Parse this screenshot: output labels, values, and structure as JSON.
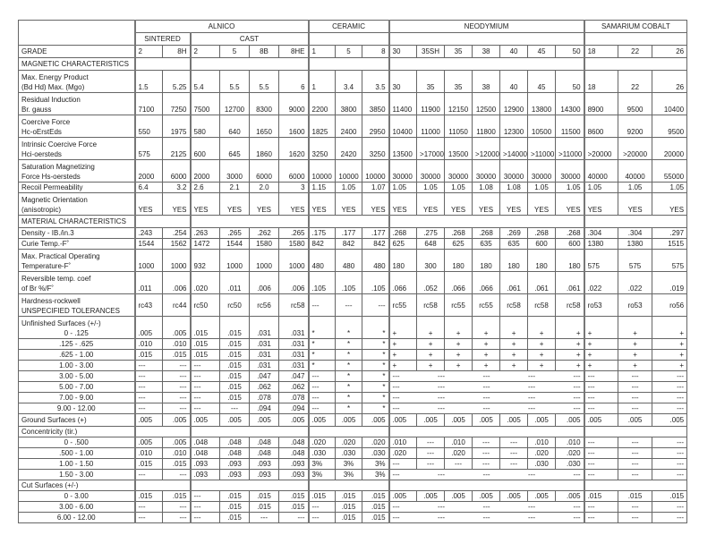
{
  "header": {
    "groups": [
      "ALNICO",
      "CERAMIC",
      "NEODYMIUM",
      "SAMARIUM COBALT"
    ],
    "subgroups": [
      "SINTERED",
      "CAST"
    ],
    "grade_label": "GRADE",
    "grades": [
      "2",
      "8H",
      "2",
      "5",
      "8B",
      "8HE",
      "1",
      "5",
      "8",
      "30",
      "35SH",
      "35",
      "38",
      "40",
      "45",
      "50",
      "18",
      "22",
      "26"
    ]
  },
  "rows": [
    {
      "type": "sec",
      "label": [
        "MAGNETIC CHARACTERISTICS"
      ]
    },
    {
      "type": "d",
      "label": [
        "Max. Energy Product",
        "(Bd Hd) Max. (Mgo)"
      ],
      "v": [
        "1.5",
        "5.25",
        "5.4",
        "5.5",
        "5.5",
        "6",
        "1",
        "3.4",
        "3.5",
        "30",
        "35",
        "35",
        "38",
        "40",
        "45",
        "50",
        "18",
        "22",
        "26"
      ]
    },
    {
      "type": "d",
      "label": [
        "Residual Induction",
        "Br. gauss"
      ],
      "v": [
        "7100",
        "7250",
        "7500",
        "12700",
        "8300",
        "9000",
        "2200",
        "3800",
        "3850",
        "11400",
        "11900",
        "12150",
        "12500",
        "12900",
        "13800",
        "14300",
        "8900",
        "9500",
        "10400"
      ]
    },
    {
      "type": "d",
      "label": [
        "Coercive Force",
        "Hc-oErstEds"
      ],
      "v": [
        "550",
        "1975",
        "580",
        "640",
        "1650",
        "1600",
        "1825",
        "2400",
        "2950",
        "10400",
        "11000",
        "11050",
        "11800",
        "12300",
        "10500",
        "11500",
        "8600",
        "9200",
        "9500"
      ]
    },
    {
      "type": "d",
      "label": [
        "Intrinsic Coercive Force",
        "Hci-oersteds"
      ],
      "v": [
        "575",
        "2125",
        "600",
        "645",
        "1860",
        "1620",
        "3250",
        "2420",
        "3250",
        "13500",
        ">17000",
        "13500",
        ">12000",
        ">14000",
        ">11000",
        ">11000",
        ">20000",
        ">20000",
        "20000"
      ]
    },
    {
      "type": "d",
      "label": [
        "Saturation Magnetizing",
        "Force Hs-oersteds"
      ],
      "v": [
        "2000",
        "6000",
        "2000",
        "3000",
        "6000",
        "6000",
        "10000",
        "10000",
        "10000",
        "30000",
        "30000",
        "30000",
        "30000",
        "30000",
        "30000",
        "30000",
        "40000",
        "40000",
        "55000"
      ]
    },
    {
      "type": "s",
      "label": [
        "Recoil Permeability"
      ],
      "v": [
        "6.4",
        "3.2",
        "2.6",
        "2.1",
        "2.0",
        "3",
        "1.15",
        "1.05",
        "1.07",
        "1.05",
        "1.05",
        "1.05",
        "1.08",
        "1.08",
        "1.05",
        "1.05",
        "1.05",
        "1.05",
        "1.05"
      ]
    },
    {
      "type": "d",
      "label": [
        "Magnetic Orientation",
        "(anisotropic)"
      ],
      "v": [
        "YES",
        "YES",
        "YES",
        "YES",
        "YES",
        "YES",
        "YES",
        "YES",
        "YES",
        "YES",
        "YES",
        "YES",
        "YES",
        "YES",
        "YES",
        "YES",
        "YES",
        "YES",
        "YES"
      ]
    },
    {
      "type": "sec",
      "label": [
        "MATERIAL CHARACTERISTICS"
      ]
    },
    {
      "type": "s",
      "label": [
        "Density - IB./in.3"
      ],
      "v": [
        ".243",
        ".254",
        ".263",
        ".265",
        ".262",
        ".265",
        ".175",
        ".177",
        ".177",
        ".268",
        ".275",
        ".268",
        ".268",
        ".269",
        ".268",
        ".268",
        ".304",
        ".304",
        ".297"
      ]
    },
    {
      "type": "s",
      "label": [
        "Curie Temp.-F˚"
      ],
      "v": [
        "1544",
        "1562",
        "1472",
        "1544",
        "1580",
        "1580",
        "842",
        "842",
        "842",
        "625",
        "648",
        "625",
        "635",
        "635",
        "600",
        "600",
        "1380",
        "1380",
        "1515"
      ]
    },
    {
      "type": "d",
      "label": [
        "Max. Practical Operating",
        "Temperature-F˚"
      ],
      "v": [
        "1000",
        "1000",
        "932",
        "1000",
        "1000",
        "1000",
        "480",
        "480",
        "480",
        "180",
        "300",
        "180",
        "180",
        "180",
        "180",
        "180",
        "575",
        "575",
        "575"
      ]
    },
    {
      "type": "d",
      "label": [
        "Reversible temp. coef",
        "of Br %/F˚"
      ],
      "v": [
        ".011",
        ".006",
        ".020",
        ".011",
        ".006",
        ".006",
        ".105",
        ".105",
        ".105",
        ".066",
        ".052",
        ".066",
        ".066",
        ".061",
        ".061",
        ".061",
        ".022",
        ".022",
        ".019"
      ]
    },
    {
      "type": "d",
      "mid": true,
      "label": [
        "Hardness-rockwell",
        "UNSPECIFIED TOLERANCES"
      ],
      "v": [
        "rc43",
        "rc44",
        "rc50",
        "rc50",
        "rc56",
        "rc58",
        "---",
        "---",
        "---",
        "rc55",
        "rc58",
        "rc55",
        "rc55",
        "rc58",
        "rc58",
        "rc58",
        "ro53",
        "ro53",
        "ro56"
      ]
    },
    {
      "type": "d",
      "sublabel": true,
      "label": [
        "Unfinished Surfaces (+/-)",
        "0 - .125"
      ],
      "v": [
        ".005",
        ".005",
        ".015",
        ".015",
        ".031",
        ".031",
        "*",
        "*",
        "*",
        "+",
        "+",
        "+",
        "+",
        "+",
        "+",
        "+",
        "+",
        "+",
        "+"
      ]
    },
    {
      "type": "s",
      "sub": true,
      "label": [
        ".125 - .625"
      ],
      "v": [
        ".010",
        ".010",
        ".015",
        ".015",
        ".031",
        ".031",
        "*",
        "*",
        "*",
        "+",
        "+",
        "+",
        "+",
        "+",
        "+",
        "+",
        "+",
        "+",
        "+"
      ]
    },
    {
      "type": "s",
      "sub": true,
      "label": [
        ".625 - 1.00"
      ],
      "v": [
        ".015",
        ".015",
        ".015",
        ".015",
        ".031",
        ".031",
        "*",
        "*",
        "*",
        "+",
        "+",
        "+",
        "+",
        "+",
        "+",
        "+",
        "+",
        "+",
        "+"
      ]
    },
    {
      "type": "s",
      "sub": true,
      "label": [
        "1.00 - 3.00"
      ],
      "v": [
        "---",
        "---",
        "---",
        ".015",
        ".031",
        ".031",
        "*",
        "*",
        "*",
        "+",
        "+",
        "+",
        "+",
        "+",
        "+",
        "+",
        "+",
        "+",
        "+"
      ]
    },
    {
      "type": "s",
      "sub": true,
      "label": [
        "3.00 - 5.00"
      ],
      "v": [
        "---",
        "---",
        "---",
        ".015",
        ".047",
        ".047",
        "---",
        "*",
        "*"
      ],
      "neo": [
        "---",
        "---",
        "---",
        "---",
        "---"
      ],
      "sm": [
        "---",
        "---",
        "---"
      ]
    },
    {
      "type": "s",
      "sub": true,
      "label": [
        "5.00 - 7.00"
      ],
      "v": [
        "---",
        "---",
        "---",
        ".015",
        ".062",
        ".062",
        "---",
        "*",
        "*"
      ],
      "neo": [
        "---",
        "---",
        "---",
        "---",
        "---"
      ],
      "sm": [
        "---",
        "---",
        "---"
      ]
    },
    {
      "type": "s",
      "sub": true,
      "label": [
        "7.00 - 9.00"
      ],
      "v": [
        "---",
        "---",
        "---",
        ".015",
        ".078",
        ".078",
        "---",
        "*",
        "*"
      ],
      "neo": [
        "---",
        "---",
        "---",
        "---",
        "---"
      ],
      "sm": [
        "---",
        "---",
        "---"
      ]
    },
    {
      "type": "s",
      "sub": true,
      "label": [
        "9.00 - 12.00"
      ],
      "v": [
        "---",
        "---",
        "---",
        "---",
        ".094",
        ".094",
        "---",
        "*",
        "*"
      ],
      "neo": [
        "---",
        "---",
        "---",
        "---",
        "---"
      ],
      "sm": [
        "---",
        "---",
        "---"
      ]
    },
    {
      "type": "sec",
      "label": [
        "Ground Surfaces (+)"
      ],
      "v": [
        ".005",
        ".005",
        ".005",
        ".005",
        ".005",
        ".005",
        ".005",
        ".005",
        ".005",
        ".005",
        ".005",
        ".005",
        ".005",
        ".005",
        ".005",
        ".005",
        ".005",
        ".005",
        ".005"
      ]
    },
    {
      "type": "s",
      "label": [
        "Concentricity (tir.)"
      ],
      "empty": true
    },
    {
      "type": "s",
      "sub": true,
      "label": [
        "0 - .500"
      ],
      "v": [
        ".005",
        ".005",
        ".048",
        ".048",
        ".048",
        ".048",
        ".020",
        ".020",
        ".020",
        ".010",
        "---",
        ".010",
        "---",
        "---",
        ".010",
        ".010",
        "---",
        "---",
        "---"
      ]
    },
    {
      "type": "s",
      "sub": true,
      "label": [
        ".500 - 1.00"
      ],
      "v": [
        ".010",
        ".010",
        ".048",
        ".048",
        ".048",
        ".048",
        ".030",
        ".030",
        ".030",
        ".020",
        "---",
        ".020",
        "---",
        "---",
        ".020",
        ".020",
        "---",
        "---",
        "---"
      ]
    },
    {
      "type": "s",
      "sub": true,
      "label": [
        "1.00 - 1.50"
      ],
      "v": [
        ".015",
        ".015",
        ".093",
        ".093",
        ".093",
        ".093",
        "3%",
        "3%",
        "3%",
        "---",
        "---",
        "---",
        "---",
        "---",
        ".030",
        ".030",
        "---",
        "---",
        "---"
      ]
    },
    {
      "type": "s",
      "sub": true,
      "label": [
        "1.50 - 3.00"
      ],
      "v": [
        "---",
        "---",
        ".093",
        ".093",
        ".093",
        ".093",
        "3%",
        "3%",
        "3%"
      ],
      "neo": [
        "---",
        "---",
        "---",
        "---",
        "---"
      ],
      "sm": [
        "---",
        "---",
        "---"
      ]
    },
    {
      "type": "s",
      "label": [
        "Cut Surfaces (+/-)"
      ],
      "empty": true
    },
    {
      "type": "s",
      "sub": true,
      "label": [
        "0 - 3.00"
      ],
      "v": [
        ".015",
        ".015",
        "---",
        ".015",
        ".015",
        ".015",
        ".015",
        ".015",
        ".015",
        ".005",
        ".005",
        ".005",
        ".005",
        ".005",
        ".005",
        ".005",
        ".015",
        ".015",
        ".015"
      ]
    },
    {
      "type": "s",
      "sub": true,
      "label": [
        "3.00 - 6.00"
      ],
      "v": [
        "---",
        "---",
        "---",
        ".015",
        ".015",
        ".015",
        "---",
        ".015",
        ".015"
      ],
      "neo": [
        "---",
        "---",
        "---",
        "---",
        "---"
      ],
      "sm": [
        "---",
        "---",
        "---"
      ]
    },
    {
      "type": "s",
      "sub": true,
      "label": [
        "6.00 - 12.00"
      ],
      "v": [
        "---",
        "---",
        "---",
        ".015",
        "---",
        "---",
        "---",
        ".015",
        ".015"
      ],
      "neo": [
        "---",
        "---",
        "---",
        "---",
        "---"
      ],
      "sm": [
        "---",
        "---",
        "---"
      ]
    }
  ]
}
